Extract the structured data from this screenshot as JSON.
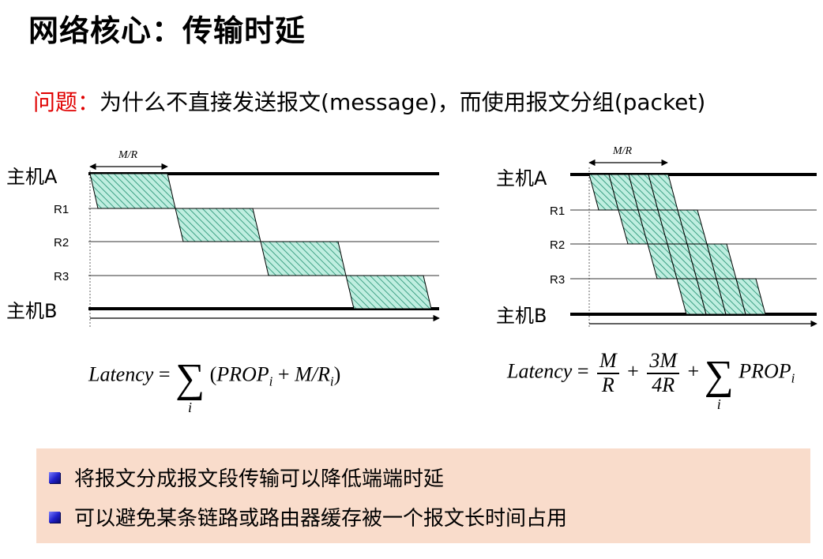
{
  "title": "网络核心：传输时延",
  "question": {
    "label": "问题：",
    "text": "为什么不直接发送报文(message)，而使用报文分组(packet)"
  },
  "left_diagram": {
    "interval_label": "M/R",
    "host_top": "主机A",
    "routers": [
      "R1",
      "R2",
      "R3"
    ],
    "host_bottom": "主机B"
  },
  "right_diagram": {
    "interval_label": "M/R",
    "host_top": "主机A",
    "routers": [
      "R1",
      "R2",
      "R3"
    ],
    "host_bottom": "主机B",
    "packet_count": 4
  },
  "formula_left": {
    "lhs": "Latency",
    "eq": "=",
    "sum_index": "i",
    "open": "(",
    "prop": "PROP",
    "sub1": "i",
    "plus": "+",
    "mr": "M/R",
    "sub2": "i",
    "close": ")"
  },
  "formula_right": {
    "lhs": "Latency",
    "eq": "=",
    "frac1_num": "M",
    "frac1_den": "R",
    "plus1": "+",
    "frac2_num": "3M",
    "frac2_den": "4R",
    "plus2": "+",
    "sum_index": "i",
    "prop": "PROP",
    "sub": "i"
  },
  "notes": [
    "将报文分成报文段传输可以降低端端时延",
    "可以避免某条链路或路由器缓存被一个报文长时间占用"
  ],
  "colors": {
    "hatch_fill": "#bfeee0",
    "hatch_line": "#1f8f6f",
    "question_label": "#e00000",
    "notes_bg": "#f9dccb"
  }
}
